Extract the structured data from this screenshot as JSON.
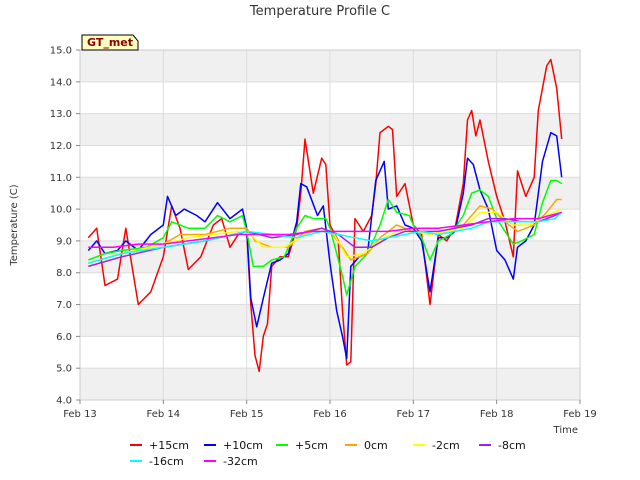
{
  "chart_data": {
    "type": "line",
    "title": "Temperature Profile C",
    "xlabel": "Time",
    "ylabel": "Temperature (C)",
    "ylim": [
      4.0,
      15.0
    ],
    "xlim": [
      "Feb 13",
      "Feb 19"
    ],
    "x_ticks": [
      "Feb 13",
      "Feb 14",
      "Feb 15",
      "Feb 16",
      "Feb 17",
      "Feb 18",
      "Feb 19"
    ],
    "y_ticks": [
      "4.0",
      "5.0",
      "6.0",
      "7.0",
      "8.0",
      "9.0",
      "10.0",
      "11.0",
      "12.0",
      "13.0",
      "14.0",
      "15.0"
    ],
    "grid": true,
    "legend_position": "bottom",
    "annotation": "GT_met",
    "x_unit": "days since Feb 13",
    "series": [
      {
        "name": "+15cm",
        "color": "#ff0000",
        "points": [
          [
            0.1,
            9.1
          ],
          [
            0.2,
            9.4
          ],
          [
            0.3,
            7.6
          ],
          [
            0.45,
            7.8
          ],
          [
            0.55,
            9.4
          ],
          [
            0.7,
            7.0
          ],
          [
            0.85,
            7.4
          ],
          [
            1.0,
            8.5
          ],
          [
            1.1,
            10.1
          ],
          [
            1.2,
            9.4
          ],
          [
            1.3,
            8.1
          ],
          [
            1.45,
            8.5
          ],
          [
            1.6,
            9.5
          ],
          [
            1.7,
            9.7
          ],
          [
            1.8,
            8.8
          ],
          [
            1.9,
            9.2
          ],
          [
            2.0,
            9.3
          ],
          [
            2.05,
            7.0
          ],
          [
            2.1,
            5.4
          ],
          [
            2.15,
            4.9
          ],
          [
            2.2,
            6.0
          ],
          [
            2.25,
            6.4
          ],
          [
            2.3,
            8.2
          ],
          [
            2.4,
            8.5
          ],
          [
            2.5,
            8.5
          ],
          [
            2.6,
            9.4
          ],
          [
            2.65,
            10.5
          ],
          [
            2.7,
            12.2
          ],
          [
            2.8,
            10.5
          ],
          [
            2.9,
            11.6
          ],
          [
            2.95,
            11.4
          ],
          [
            3.0,
            9.5
          ],
          [
            3.1,
            9.0
          ],
          [
            3.15,
            6.8
          ],
          [
            3.2,
            5.1
          ],
          [
            3.25,
            5.2
          ],
          [
            3.3,
            9.7
          ],
          [
            3.4,
            9.3
          ],
          [
            3.5,
            9.8
          ],
          [
            3.55,
            10.8
          ],
          [
            3.6,
            12.4
          ],
          [
            3.7,
            12.6
          ],
          [
            3.75,
            12.5
          ],
          [
            3.8,
            10.4
          ],
          [
            3.9,
            10.8
          ],
          [
            4.0,
            9.5
          ],
          [
            4.1,
            9.2
          ],
          [
            4.2,
            7.0
          ],
          [
            4.3,
            9.2
          ],
          [
            4.4,
            9.0
          ],
          [
            4.5,
            9.4
          ],
          [
            4.6,
            10.8
          ],
          [
            4.65,
            12.8
          ],
          [
            4.7,
            13.1
          ],
          [
            4.75,
            12.3
          ],
          [
            4.8,
            12.8
          ],
          [
            4.9,
            11.5
          ],
          [
            5.0,
            10.4
          ],
          [
            5.1,
            9.6
          ],
          [
            5.2,
            8.5
          ],
          [
            5.25,
            11.2
          ],
          [
            5.35,
            10.4
          ],
          [
            5.45,
            11.0
          ],
          [
            5.5,
            13.1
          ],
          [
            5.6,
            14.5
          ],
          [
            5.65,
            14.7
          ],
          [
            5.72,
            13.8
          ],
          [
            5.78,
            12.2
          ]
        ]
      },
      {
        "name": "+10cm",
        "color": "#0000ff",
        "points": [
          [
            0.1,
            8.7
          ],
          [
            0.2,
            9.0
          ],
          [
            0.3,
            8.6
          ],
          [
            0.45,
            8.7
          ],
          [
            0.55,
            9.0
          ],
          [
            0.7,
            8.7
          ],
          [
            0.85,
            9.2
          ],
          [
            1.0,
            9.5
          ],
          [
            1.05,
            10.4
          ],
          [
            1.15,
            9.8
          ],
          [
            1.25,
            10.0
          ],
          [
            1.4,
            9.8
          ],
          [
            1.5,
            9.6
          ],
          [
            1.65,
            10.2
          ],
          [
            1.8,
            9.7
          ],
          [
            1.95,
            10.0
          ],
          [
            2.0,
            9.4
          ],
          [
            2.05,
            7.2
          ],
          [
            2.12,
            6.3
          ],
          [
            2.2,
            7.2
          ],
          [
            2.3,
            8.3
          ],
          [
            2.4,
            8.4
          ],
          [
            2.5,
            8.6
          ],
          [
            2.6,
            9.6
          ],
          [
            2.65,
            10.8
          ],
          [
            2.72,
            10.7
          ],
          [
            2.85,
            9.8
          ],
          [
            2.92,
            10.1
          ],
          [
            3.0,
            8.3
          ],
          [
            3.08,
            6.8
          ],
          [
            3.15,
            6.0
          ],
          [
            3.2,
            5.3
          ],
          [
            3.25,
            8.2
          ],
          [
            3.35,
            8.5
          ],
          [
            3.45,
            8.6
          ],
          [
            3.55,
            10.9
          ],
          [
            3.65,
            11.5
          ],
          [
            3.7,
            10.0
          ],
          [
            3.8,
            10.1
          ],
          [
            3.9,
            9.5
          ],
          [
            4.0,
            9.4
          ],
          [
            4.1,
            9.0
          ],
          [
            4.2,
            7.4
          ],
          [
            4.3,
            9.1
          ],
          [
            4.4,
            9.1
          ],
          [
            4.5,
            9.3
          ],
          [
            4.6,
            10.5
          ],
          [
            4.65,
            11.6
          ],
          [
            4.72,
            11.4
          ],
          [
            4.8,
            10.6
          ],
          [
            4.9,
            10.0
          ],
          [
            5.0,
            8.7
          ],
          [
            5.1,
            8.4
          ],
          [
            5.2,
            7.8
          ],
          [
            5.25,
            8.8
          ],
          [
            5.35,
            9.0
          ],
          [
            5.45,
            9.5
          ],
          [
            5.55,
            11.5
          ],
          [
            5.65,
            12.4
          ],
          [
            5.72,
            12.3
          ],
          [
            5.78,
            11.0
          ]
        ]
      },
      {
        "name": "+5cm",
        "color": "#00ff00",
        "points": [
          [
            0.1,
            8.4
          ],
          [
            0.3,
            8.6
          ],
          [
            0.5,
            8.7
          ],
          [
            0.8,
            8.8
          ],
          [
            1.0,
            9.1
          ],
          [
            1.1,
            9.6
          ],
          [
            1.3,
            9.4
          ],
          [
            1.5,
            9.4
          ],
          [
            1.65,
            9.8
          ],
          [
            1.8,
            9.6
          ],
          [
            1.95,
            9.8
          ],
          [
            2.0,
            9.3
          ],
          [
            2.08,
            8.2
          ],
          [
            2.2,
            8.2
          ],
          [
            2.3,
            8.4
          ],
          [
            2.45,
            8.5
          ],
          [
            2.6,
            9.4
          ],
          [
            2.7,
            9.8
          ],
          [
            2.8,
            9.7
          ],
          [
            2.95,
            9.7
          ],
          [
            3.0,
            9.4
          ],
          [
            3.08,
            8.6
          ],
          [
            3.15,
            7.9
          ],
          [
            3.2,
            7.3
          ],
          [
            3.3,
            8.2
          ],
          [
            3.45,
            8.6
          ],
          [
            3.6,
            9.5
          ],
          [
            3.7,
            10.3
          ],
          [
            3.8,
            9.9
          ],
          [
            3.95,
            9.8
          ],
          [
            4.0,
            9.5
          ],
          [
            4.1,
            9.1
          ],
          [
            4.2,
            8.4
          ],
          [
            4.3,
            9.0
          ],
          [
            4.45,
            9.2
          ],
          [
            4.6,
            9.8
          ],
          [
            4.7,
            10.5
          ],
          [
            4.8,
            10.6
          ],
          [
            4.9,
            10.4
          ],
          [
            5.0,
            9.7
          ],
          [
            5.1,
            9.3
          ],
          [
            5.2,
            8.9
          ],
          [
            5.3,
            9.0
          ],
          [
            5.45,
            9.2
          ],
          [
            5.55,
            10.2
          ],
          [
            5.65,
            10.9
          ],
          [
            5.72,
            10.9
          ],
          [
            5.78,
            10.8
          ]
        ]
      },
      {
        "name": "0cm",
        "color": "#ffa500",
        "points": [
          [
            0.1,
            8.3
          ],
          [
            0.5,
            8.6
          ],
          [
            1.0,
            8.9
          ],
          [
            1.2,
            9.2
          ],
          [
            1.5,
            9.2
          ],
          [
            1.8,
            9.4
          ],
          [
            2.0,
            9.4
          ],
          [
            2.1,
            9.0
          ],
          [
            2.3,
            8.8
          ],
          [
            2.5,
            8.8
          ],
          [
            2.7,
            9.3
          ],
          [
            2.9,
            9.4
          ],
          [
            3.0,
            9.3
          ],
          [
            3.15,
            8.8
          ],
          [
            3.25,
            8.4
          ],
          [
            3.45,
            8.6
          ],
          [
            3.6,
            9.1
          ],
          [
            3.8,
            9.5
          ],
          [
            4.0,
            9.3
          ],
          [
            4.2,
            9.2
          ],
          [
            4.4,
            9.3
          ],
          [
            4.6,
            9.5
          ],
          [
            4.8,
            10.1
          ],
          [
            4.95,
            10.0
          ],
          [
            5.1,
            9.6
          ],
          [
            5.25,
            9.3
          ],
          [
            5.45,
            9.5
          ],
          [
            5.6,
            9.9
          ],
          [
            5.72,
            10.3
          ],
          [
            5.78,
            10.3
          ]
        ]
      },
      {
        "name": "-2cm",
        "color": "#ffff00",
        "points": [
          [
            0.1,
            8.3
          ],
          [
            0.5,
            8.6
          ],
          [
            1.0,
            8.9
          ],
          [
            1.3,
            9.1
          ],
          [
            1.6,
            9.2
          ],
          [
            1.9,
            9.3
          ],
          [
            2.05,
            9.2
          ],
          [
            2.2,
            8.8
          ],
          [
            2.45,
            8.8
          ],
          [
            2.7,
            9.2
          ],
          [
            2.9,
            9.4
          ],
          [
            3.05,
            9.2
          ],
          [
            3.2,
            8.5
          ],
          [
            3.4,
            8.6
          ],
          [
            3.6,
            9.0
          ],
          [
            3.8,
            9.3
          ],
          [
            4.0,
            9.3
          ],
          [
            4.2,
            9.2
          ],
          [
            4.4,
            9.3
          ],
          [
            4.6,
            9.4
          ],
          [
            4.8,
            9.9
          ],
          [
            5.0,
            9.9
          ],
          [
            5.2,
            9.5
          ],
          [
            5.4,
            9.5
          ],
          [
            5.6,
            9.8
          ],
          [
            5.78,
            10.0
          ]
        ]
      },
      {
        "name": "-8cm",
        "color": "#a020f0",
        "points": [
          [
            0.1,
            8.2
          ],
          [
            0.5,
            8.5
          ],
          [
            1.0,
            8.8
          ],
          [
            1.5,
            9.0
          ],
          [
            2.0,
            9.3
          ],
          [
            2.3,
            9.1
          ],
          [
            2.6,
            9.2
          ],
          [
            2.9,
            9.4
          ],
          [
            3.1,
            9.2
          ],
          [
            3.3,
            8.8
          ],
          [
            3.5,
            8.8
          ],
          [
            3.7,
            9.1
          ],
          [
            3.9,
            9.3
          ],
          [
            4.1,
            9.3
          ],
          [
            4.3,
            9.3
          ],
          [
            4.5,
            9.4
          ],
          [
            4.7,
            9.5
          ],
          [
            4.9,
            9.7
          ],
          [
            5.1,
            9.7
          ],
          [
            5.3,
            9.6
          ],
          [
            5.5,
            9.6
          ],
          [
            5.7,
            9.8
          ],
          [
            5.78,
            9.9
          ]
        ]
      },
      {
        "name": "-16cm",
        "color": "#00ffff",
        "points": [
          [
            0.1,
            8.3
          ],
          [
            0.5,
            8.6
          ],
          [
            1.0,
            8.8
          ],
          [
            1.5,
            9.0
          ],
          [
            2.0,
            9.3
          ],
          [
            2.3,
            9.2
          ],
          [
            2.6,
            9.1
          ],
          [
            2.9,
            9.3
          ],
          [
            3.1,
            9.2
          ],
          [
            3.3,
            9.1
          ],
          [
            3.5,
            9.0
          ],
          [
            3.7,
            9.1
          ],
          [
            3.9,
            9.2
          ],
          [
            4.1,
            9.3
          ],
          [
            4.3,
            9.2
          ],
          [
            4.5,
            9.3
          ],
          [
            4.7,
            9.4
          ],
          [
            4.9,
            9.6
          ],
          [
            5.1,
            9.6
          ],
          [
            5.3,
            9.6
          ],
          [
            5.5,
            9.6
          ],
          [
            5.7,
            9.7
          ],
          [
            5.78,
            9.9
          ]
        ]
      },
      {
        "name": "-32cm",
        "color": "#ff00ff",
        "points": [
          [
            0.1,
            8.8
          ],
          [
            0.4,
            8.8
          ],
          [
            0.7,
            8.9
          ],
          [
            1.0,
            8.9
          ],
          [
            1.3,
            9.0
          ],
          [
            1.6,
            9.1
          ],
          [
            1.9,
            9.2
          ],
          [
            2.2,
            9.2
          ],
          [
            2.5,
            9.2
          ],
          [
            2.8,
            9.3
          ],
          [
            3.1,
            9.3
          ],
          [
            3.4,
            9.3
          ],
          [
            3.7,
            9.3
          ],
          [
            4.0,
            9.4
          ],
          [
            4.3,
            9.4
          ],
          [
            4.6,
            9.5
          ],
          [
            4.9,
            9.6
          ],
          [
            5.2,
            9.7
          ],
          [
            5.5,
            9.7
          ],
          [
            5.78,
            9.9
          ]
        ]
      }
    ]
  }
}
